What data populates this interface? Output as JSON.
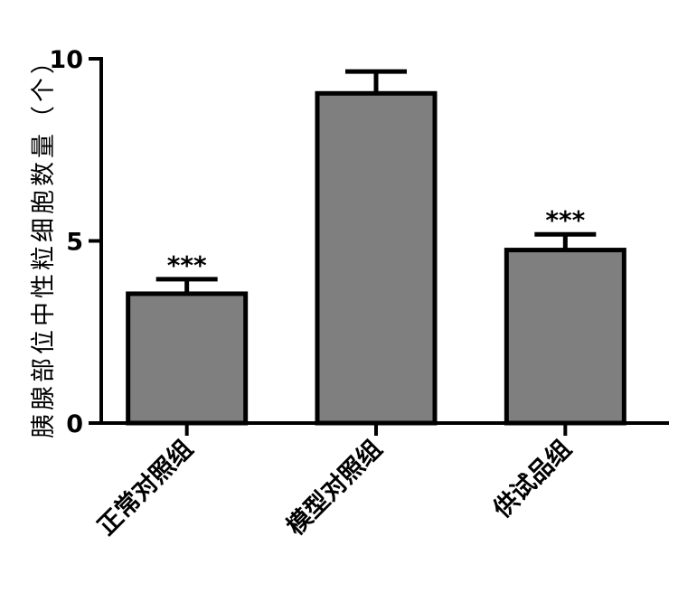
{
  "chart_data": {
    "type": "bar",
    "ylabel": "胰腺部位中性粒细胞数量（个）",
    "ylim": [
      0,
      10
    ],
    "yticks": [
      0,
      5,
      10
    ],
    "categories": [
      "正常对照组",
      "模型对照组",
      "供试品组"
    ],
    "values": [
      3.55,
      9.05,
      4.75
    ],
    "errors": [
      0.4,
      0.6,
      0.43
    ],
    "significance": [
      "***",
      "",
      "***"
    ],
    "bar_color": "#7f7f7f",
    "grid": false
  }
}
